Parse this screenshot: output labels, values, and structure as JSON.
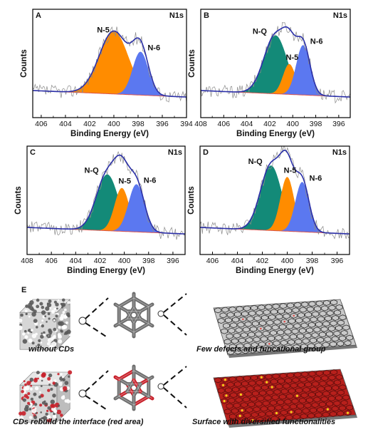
{
  "chart_data": [
    {
      "type": "area",
      "panel_letter": "A",
      "core_level": "N1s",
      "xlabel": "Binding Energy (eV)",
      "ylabel": "Counts",
      "xlim": [
        406.7,
        394.0
      ],
      "x_ticks": [
        "406",
        "404",
        "402",
        "400",
        "398",
        "396",
        "394"
      ],
      "series": [
        {
          "name": "N-5",
          "center": 400.0,
          "height": 0.58,
          "width": 1.2,
          "color": "#ff8c00"
        },
        {
          "name": "N-6",
          "center": 397.8,
          "height": 0.4,
          "width": 0.65,
          "color": "#5b78f0"
        }
      ]
    },
    {
      "type": "area",
      "panel_letter": "B",
      "core_level": "N1s",
      "xlabel": "Binding Energy (eV)",
      "ylabel": "Counts",
      "xlim": [
        408.0,
        395.0
      ],
      "x_ticks": [
        "408",
        "406",
        "404",
        "402",
        "400",
        "398",
        "396"
      ],
      "series": [
        {
          "name": "N-Q",
          "center": 401.5,
          "height": 0.54,
          "width": 1.0,
          "color": "#138a78"
        },
        {
          "name": "N-5",
          "center": 400.3,
          "height": 0.28,
          "width": 0.55,
          "color": "#ff8c00"
        },
        {
          "name": "N-6",
          "center": 399.1,
          "height": 0.46,
          "width": 0.6,
          "color": "#5b78f0"
        }
      ]
    },
    {
      "type": "area",
      "panel_letter": "C",
      "core_level": "N1s",
      "xlabel": "Binding Energy (eV)",
      "ylabel": "Counts",
      "xlim": [
        408.0,
        395.0
      ],
      "x_ticks": [
        "408",
        "406",
        "404",
        "402",
        "400",
        "398",
        "396"
      ],
      "series": [
        {
          "name": "N-Q",
          "center": 401.4,
          "height": 0.52,
          "width": 0.9,
          "color": "#138a78"
        },
        {
          "name": "N-5",
          "center": 400.2,
          "height": 0.4,
          "width": 0.6,
          "color": "#ff8c00"
        },
        {
          "name": "N-6",
          "center": 399.0,
          "height": 0.44,
          "width": 0.65,
          "color": "#5b78f0"
        }
      ]
    },
    {
      "type": "area",
      "panel_letter": "D",
      "core_level": "N1s",
      "xlabel": "Binding Energy (eV)",
      "ylabel": "Counts",
      "xlim": [
        407.0,
        395.0
      ],
      "x_ticks": [
        "406",
        "404",
        "402",
        "400",
        "398",
        "396"
      ],
      "series": [
        {
          "name": "N-Q",
          "center": 401.3,
          "height": 0.6,
          "width": 0.85,
          "color": "#138a78"
        },
        {
          "name": "N-5",
          "center": 400.0,
          "height": 0.5,
          "width": 0.55,
          "color": "#ff8c00"
        },
        {
          "name": "N-6",
          "center": 398.8,
          "height": 0.46,
          "width": 0.55,
          "color": "#5b78f0"
        }
      ]
    }
  ],
  "schematic": {
    "panel_letter": "E",
    "caption_without": "without CDs",
    "caption_defects": "Few defects and funcational group",
    "caption_with": "CDs rebuild the interface (red area)",
    "caption_surface": "Surface with diversified functionalities",
    "colors": {
      "matrix": "#9a9a9a",
      "cd": "#c8202a",
      "sheet_plain": "#c9c9c9",
      "sheet_red": "#b8201c",
      "dot": "#f2d21b"
    }
  }
}
